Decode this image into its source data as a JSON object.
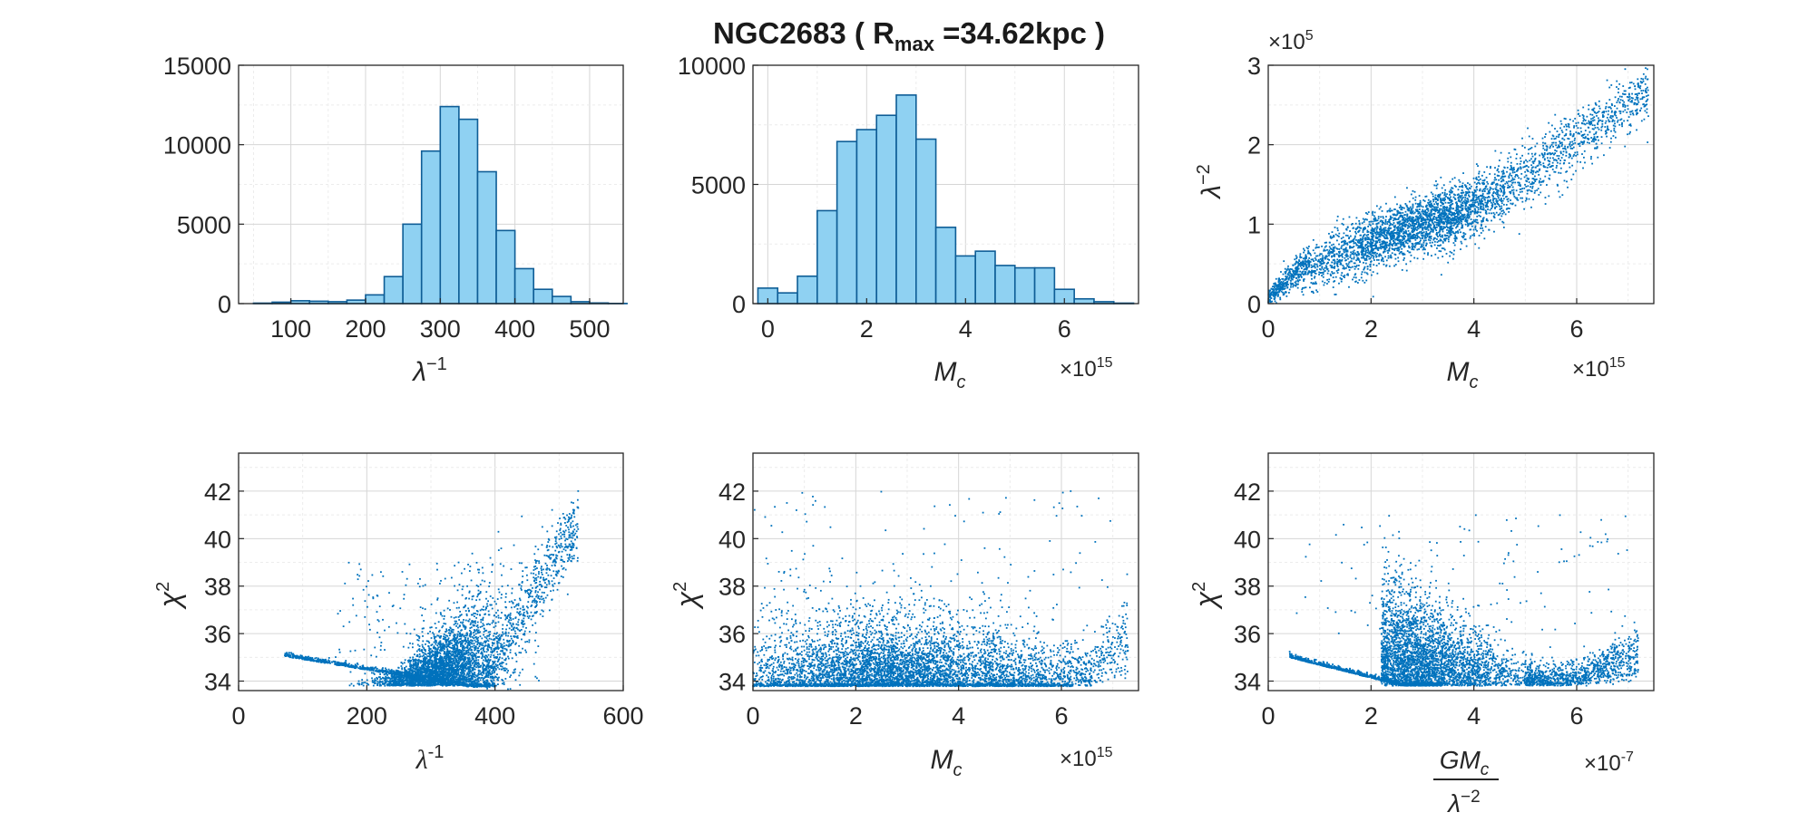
{
  "title": {
    "main": "NGC2683 ( R",
    "sub": "max",
    "rest": " =34.62kpc )"
  },
  "chart_data": [
    {
      "id": "p1",
      "type": "bar",
      "xlabel": "λ-1",
      "ylabel": "",
      "xlim": [
        30,
        545
      ],
      "ylim": [
        0,
        15000
      ],
      "xticks": [
        100,
        200,
        300,
        400,
        500
      ],
      "yticks": [
        0,
        5000,
        10000,
        15000
      ],
      "grid": true,
      "bin_width": 25,
      "bin_centers": [
        62.5,
        87.5,
        112.5,
        137.5,
        162.5,
        187.5,
        212.5,
        237.5,
        262.5,
        287.5,
        312.5,
        337.5,
        362.5,
        387.5,
        412.5,
        437.5,
        462.5,
        487.5,
        512.5,
        537.5
      ],
      "values": [
        30,
        90,
        180,
        150,
        120,
        220,
        550,
        1700,
        5000,
        9600,
        12400,
        11600,
        8300,
        4600,
        2200,
        900,
        450,
        120,
        40,
        10
      ]
    },
    {
      "id": "p2",
      "type": "bar",
      "xlabel": "M_c",
      "ylabel": "",
      "x_exponent": "×10^15",
      "xlim": [
        -0.3,
        7.5
      ],
      "ylim": [
        0,
        10000
      ],
      "xticks": [
        0,
        2,
        4,
        6
      ],
      "yticks": [
        0,
        5000,
        10000
      ],
      "grid": true,
      "bin_width": 0.4,
      "bin_centers": [
        0.0,
        0.4,
        0.8,
        1.2,
        1.6,
        2.0,
        2.4,
        2.8,
        3.2,
        3.6,
        4.0,
        4.4,
        4.8,
        5.2,
        5.6,
        6.0,
        6.4,
        6.8,
        7.2
      ],
      "values": [
        650,
        450,
        1150,
        3900,
        6800,
        7300,
        7900,
        8750,
        6900,
        3200,
        2000,
        2200,
        1600,
        1500,
        1500,
        600,
        200,
        80,
        20
      ]
    },
    {
      "id": "p3",
      "type": "scatter",
      "xlabel": "M_c",
      "ylabel": "λ-2",
      "x_exponent": "×10^15",
      "y_exponent": "×10^5",
      "xlim": [
        0,
        7.5
      ],
      "ylim": [
        0,
        3
      ],
      "xticks": [
        0,
        2,
        4,
        6
      ],
      "yticks": [
        0,
        1,
        2,
        3
      ],
      "grid": true,
      "color": "#0072bd"
    },
    {
      "id": "p4",
      "type": "scatter",
      "xlabel": "λ-1",
      "ylabel": "χ2",
      "xlim": [
        0,
        600
      ],
      "ylim": [
        33.6,
        43.6
      ],
      "xticks": [
        0,
        200,
        400,
        600
      ],
      "yticks": [
        34,
        36,
        38,
        40,
        42
      ],
      "grid": true,
      "color": "#0072bd"
    },
    {
      "id": "p5",
      "type": "scatter",
      "xlabel": "M_c",
      "ylabel": "χ2",
      "x_exponent": "×10^15",
      "xlim": [
        0,
        7.5
      ],
      "ylim": [
        33.6,
        43.6
      ],
      "xticks": [
        0,
        2,
        4,
        6
      ],
      "yticks": [
        34,
        36,
        38,
        40,
        42
      ],
      "grid": true,
      "color": "#0072bd"
    },
    {
      "id": "p6",
      "type": "scatter",
      "xlabel": "GM_c / λ-2",
      "ylabel": "χ2",
      "x_exponent": "×10^-7",
      "xlim": [
        0,
        7.5
      ],
      "ylim": [
        33.6,
        43.6
      ],
      "xticks": [
        0,
        2,
        4,
        6
      ],
      "yticks": [
        34,
        36,
        38,
        40,
        42
      ],
      "grid": true,
      "color": "#0072bd"
    }
  ],
  "colors": {
    "bar_fill": "#8fd1f2",
    "bar_edge": "#0e5d96",
    "scatter": "#0072bd",
    "axis": "#262626",
    "grid": "#dcdcdc"
  },
  "text": {
    "p1_xlabel_main": "λ",
    "p1_xlabel_sup": "−1",
    "p2_xlabel_main": "M",
    "p2_xlabel_sub": "c",
    "p2_exp_base": "×10",
    "p2_exp_pow": "15",
    "p3_xlabel_main": "M",
    "p3_xlabel_sub": "c",
    "p3_exp_base": "×10",
    "p3_exp_pow": "15",
    "p3_yexp_base": "×10",
    "p3_yexp_pow": "5",
    "p3_ylabel_main": "λ",
    "p3_ylabel_sup": "−2",
    "p4_xlabel_main": "λ",
    "p4_xlabel_sup": "-1",
    "p4_ylabel_main": "χ",
    "p4_ylabel_sup": "2",
    "p5_xlabel_main": "M",
    "p5_xlabel_sub": "c",
    "p5_exp_base": "×10",
    "p5_exp_pow": "15",
    "p5_ylabel_main": "χ",
    "p5_ylabel_sup": "2",
    "p6_xlabel_num": "GM",
    "p6_xlabel_num_sub": "c",
    "p6_xlabel_den": "λ",
    "p6_xlabel_den_sup": "−2",
    "p6_exp_base": "×10",
    "p6_exp_pow": "-7",
    "p6_ylabel_main": "χ",
    "p6_ylabel_sup": "2"
  }
}
